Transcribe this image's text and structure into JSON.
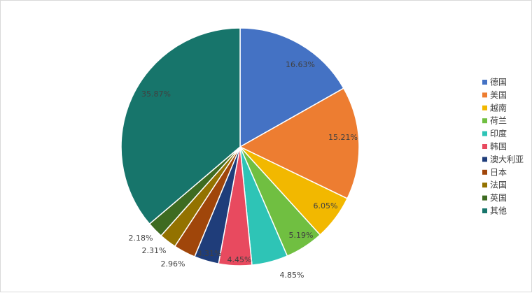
{
  "chart_data": {
    "type": "pie",
    "title": "",
    "categories": [
      "德国",
      "美国",
      "越南",
      "荷兰",
      "印度",
      "韩国",
      "澳大利亚",
      "日本",
      "法国",
      "英国",
      "其他"
    ],
    "values": [
      16.63,
      15.21,
      6.05,
      5.19,
      4.85,
      4.45,
      3.31,
      2.96,
      2.31,
      2.18,
      35.87
    ],
    "labels": [
      "16.63%",
      "15.21%",
      "6.05%",
      "5.19%",
      "4.85%",
      "4.45%",
      "3.31%",
      "2.96%",
      "2.31%",
      "2.18%",
      "35.87%"
    ],
    "colors": [
      "#4472C4",
      "#ED7D31",
      "#F2B800",
      "#70BF41",
      "#2EC4B6",
      "#E84A5F",
      "#1F3D7A",
      "#A0460A",
      "#937200",
      "#3E6B21",
      "#17756B"
    ],
    "legend_position": "right"
  }
}
